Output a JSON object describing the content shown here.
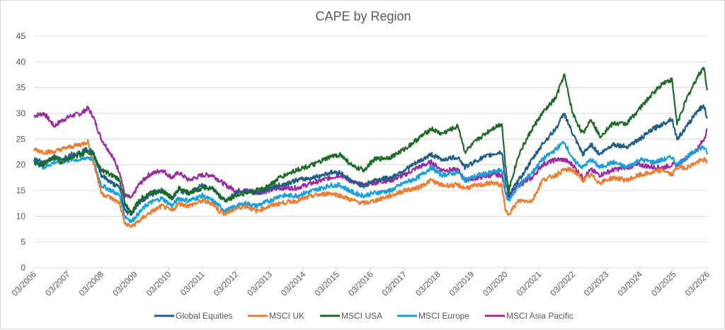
{
  "chart_data": {
    "type": "line",
    "title": "CAPE by Region",
    "xlabel": "",
    "ylabel": "",
    "ylim": [
      0,
      45
    ],
    "yticks": [
      0,
      5,
      10,
      15,
      20,
      25,
      30,
      35,
      40,
      45
    ],
    "xlim": [
      "03/2006",
      "03/2026"
    ],
    "xticks": [
      "03/2006",
      "03/2007",
      "03/2008",
      "03/2009",
      "03/2010",
      "03/2011",
      "03/2012",
      "03/2013",
      "03/2014",
      "03/2015",
      "03/2016",
      "03/2017",
      "03/2018",
      "03/2019",
      "03/2020",
      "03/2021",
      "03/2022",
      "03/2023",
      "03/2024",
      "03/2025",
      "03/2026"
    ],
    "grid": true,
    "legend_position": "bottom",
    "x": [
      2006.2,
      2006.5,
      2006.8,
      2007.0,
      2007.3,
      2007.6,
      2007.8,
      2007.95,
      2008.2,
      2008.5,
      2008.75,
      2008.9,
      2009.1,
      2009.3,
      2009.6,
      2010.0,
      2010.3,
      2010.5,
      2010.8,
      2011.2,
      2011.5,
      2011.7,
      2011.9,
      2012.2,
      2012.5,
      2012.8,
      2013.2,
      2013.5,
      2014.0,
      2014.5,
      2015.0,
      2015.3,
      2015.7,
      2016.0,
      2016.3,
      2016.8,
      2017.2,
      2017.6,
      2018.0,
      2018.3,
      2018.8,
      2019.0,
      2019.4,
      2019.8,
      2020.1,
      2020.2,
      2020.3,
      2020.6,
      2021.0,
      2021.3,
      2021.7,
      2021.95,
      2022.2,
      2022.5,
      2022.75,
      2023.0,
      2023.4,
      2023.8,
      2024.2,
      2024.6,
      2024.9,
      2025.15,
      2025.3,
      2025.6,
      2025.9,
      2026.1,
      2026.2
    ],
    "series": [
      {
        "name": "Global Equities",
        "color": "#1f5f86",
        "values": [
          21,
          20.5,
          21.5,
          21,
          22,
          22.5,
          23,
          22.5,
          18,
          16.5,
          15.5,
          11,
          10.5,
          12.5,
          14,
          15,
          13.5,
          15,
          14.5,
          16,
          15.5,
          14,
          13,
          14.5,
          15,
          14.5,
          15.5,
          16,
          17,
          17.5,
          18.5,
          18.5,
          16.5,
          16,
          17,
          17.5,
          19,
          20.5,
          22,
          21,
          21.5,
          19.5,
          21,
          22,
          22.5,
          17,
          14,
          17,
          21,
          24,
          27,
          30,
          26,
          22,
          24,
          22,
          24,
          23.5,
          25,
          27,
          28,
          29,
          25,
          27.5,
          30.5,
          31.5,
          29
        ]
      },
      {
        "name": "MSCI UK",
        "color": "#ed7d31",
        "values": [
          23,
          22.5,
          22.5,
          23,
          23.5,
          24,
          24.5,
          21,
          14.5,
          13.5,
          12.5,
          8.5,
          8,
          9,
          10.5,
          12,
          11,
          12.5,
          12,
          13,
          12.5,
          11,
          10.5,
          11.5,
          12,
          11,
          12,
          12.5,
          13,
          14,
          14.5,
          14,
          13,
          12.5,
          13,
          14,
          15,
          15.5,
          17,
          16,
          16,
          15.5,
          16,
          16.5,
          16,
          11,
          10.5,
          13,
          13,
          17,
          18,
          19,
          19,
          17,
          18,
          16.5,
          17.5,
          17,
          18,
          18.5,
          19,
          18,
          19.5,
          19.5,
          20.5,
          21,
          20.5
        ]
      },
      {
        "name": "MSCI USA",
        "color": "#1e6b27",
        "values": [
          20.5,
          20,
          21.5,
          20.5,
          21.5,
          22,
          22.5,
          22,
          19,
          18,
          17,
          12.5,
          10.5,
          13,
          14.5,
          15,
          13.5,
          15.5,
          14.5,
          15.5,
          15.5,
          14,
          13,
          14,
          14.5,
          15,
          16,
          17.5,
          19,
          20,
          21.5,
          22,
          19.5,
          19,
          21,
          21.5,
          23,
          25,
          27,
          26,
          27.5,
          22.5,
          25,
          27,
          28,
          20,
          15,
          22,
          27,
          30,
          33,
          37.5,
          30,
          26,
          29,
          25.5,
          28,
          28,
          31,
          34,
          36,
          36.5,
          28,
          33,
          37,
          39,
          34.5
        ]
      },
      {
        "name": "MSCI Europe",
        "color": "#17a0db",
        "values": [
          20.5,
          19.5,
          20.5,
          20.5,
          21,
          21,
          21.5,
          21,
          16,
          15,
          14,
          10,
          9,
          10.5,
          12.5,
          13.5,
          12,
          13.5,
          13,
          14,
          13,
          12,
          11,
          12,
          12.5,
          12,
          13,
          14,
          14,
          15,
          16,
          16,
          14.5,
          14,
          14.5,
          15,
          16.5,
          17.5,
          19.5,
          18,
          18.5,
          17,
          18,
          18.5,
          19,
          14.5,
          13,
          16,
          18.5,
          21,
          23,
          24.5,
          21,
          19.5,
          21,
          19.5,
          20.5,
          19.5,
          21,
          20.5,
          21,
          21.5,
          20,
          21.5,
          23,
          23.5,
          22
        ]
      },
      {
        "name": "MSCI Asia Pacific",
        "color": "#9b2c9f",
        "values": [
          29.5,
          30,
          27.5,
          28.5,
          29.5,
          30,
          31,
          29.5,
          25,
          22,
          18.5,
          14,
          13.5,
          16,
          18,
          19,
          17.5,
          18.5,
          17,
          18,
          18,
          17,
          16,
          15,
          15,
          14.5,
          15,
          15.5,
          15.5,
          16.5,
          17.5,
          18,
          16.5,
          16,
          16.5,
          17,
          18,
          19.5,
          20.5,
          19,
          19,
          17,
          17.5,
          18,
          18,
          15,
          14,
          16,
          17.5,
          20,
          21,
          21,
          20,
          17.5,
          19,
          18,
          19,
          19.5,
          20,
          19.5,
          19.5,
          20,
          20,
          21.5,
          23,
          25,
          27
        ]
      }
    ]
  }
}
